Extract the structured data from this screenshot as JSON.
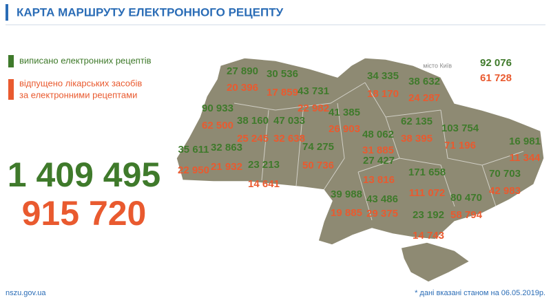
{
  "header": {
    "title": "КАРТА МАРШРУТУ ЕЛЕКТРОННОГО РЕЦЕПТУ"
  },
  "legend": {
    "issued": "виписано електронних рецептів",
    "dispensed_1": "відпущено лікарських засобів",
    "dispensed_2": "за електронними рецептами"
  },
  "totals": {
    "issued": "1 409 495",
    "dispensed": "915 720"
  },
  "kyiv_city": {
    "label": "місто Київ",
    "issued": "92 076",
    "dispensed": "61 728"
  },
  "regions": [
    {
      "issued": "27 890",
      "dispensed": "20 396"
    },
    {
      "issued": "30 536",
      "dispensed": "17 859"
    },
    {
      "issued": "43 731",
      "dispensed": "22 982"
    },
    {
      "issued": "34 335",
      "dispensed": "18 170"
    },
    {
      "issued": "38 632",
      "dispensed": "24 287"
    },
    {
      "issued": "90 933",
      "dispensed": "62 500"
    },
    {
      "issued": "41 385",
      "dispensed": "26 903"
    },
    {
      "issued": "38 160",
      "dispensed": "25 245"
    },
    {
      "issued": "47 033",
      "dispensed": "32 638"
    },
    {
      "issued": "62 135",
      "dispensed": "38 395"
    },
    {
      "issued": "103 754",
      "dispensed": "71 196"
    },
    {
      "issued": "16 981",
      "dispensed": "11 344"
    },
    {
      "issued": "35 611",
      "dispensed": "22 950"
    },
    {
      "issued": "32 863",
      "dispensed": "21 932"
    },
    {
      "issued": "74 275",
      "dispensed": "50 736"
    },
    {
      "issued": "48 062",
      "dispensed": "31 885"
    },
    {
      "issued": "23 213",
      "dispensed": "14 641"
    },
    {
      "issued": "27 427",
      "dispensed": "13 816"
    },
    {
      "issued": "171 658",
      "dispensed": "111 072"
    },
    {
      "issued": "70 703",
      "dispensed": "42 983"
    },
    {
      "issued": "39 988",
      "dispensed": "19 885"
    },
    {
      "issued": "43 486",
      "dispensed": "29 375"
    },
    {
      "issued": "80 470",
      "dispensed": "58 794"
    },
    {
      "issued": "23 192",
      "dispensed": "14 743"
    }
  ],
  "footer": {
    "site": "nszu.gov.ua",
    "note": "* дані вказані станом на 06.05.2019р."
  }
}
